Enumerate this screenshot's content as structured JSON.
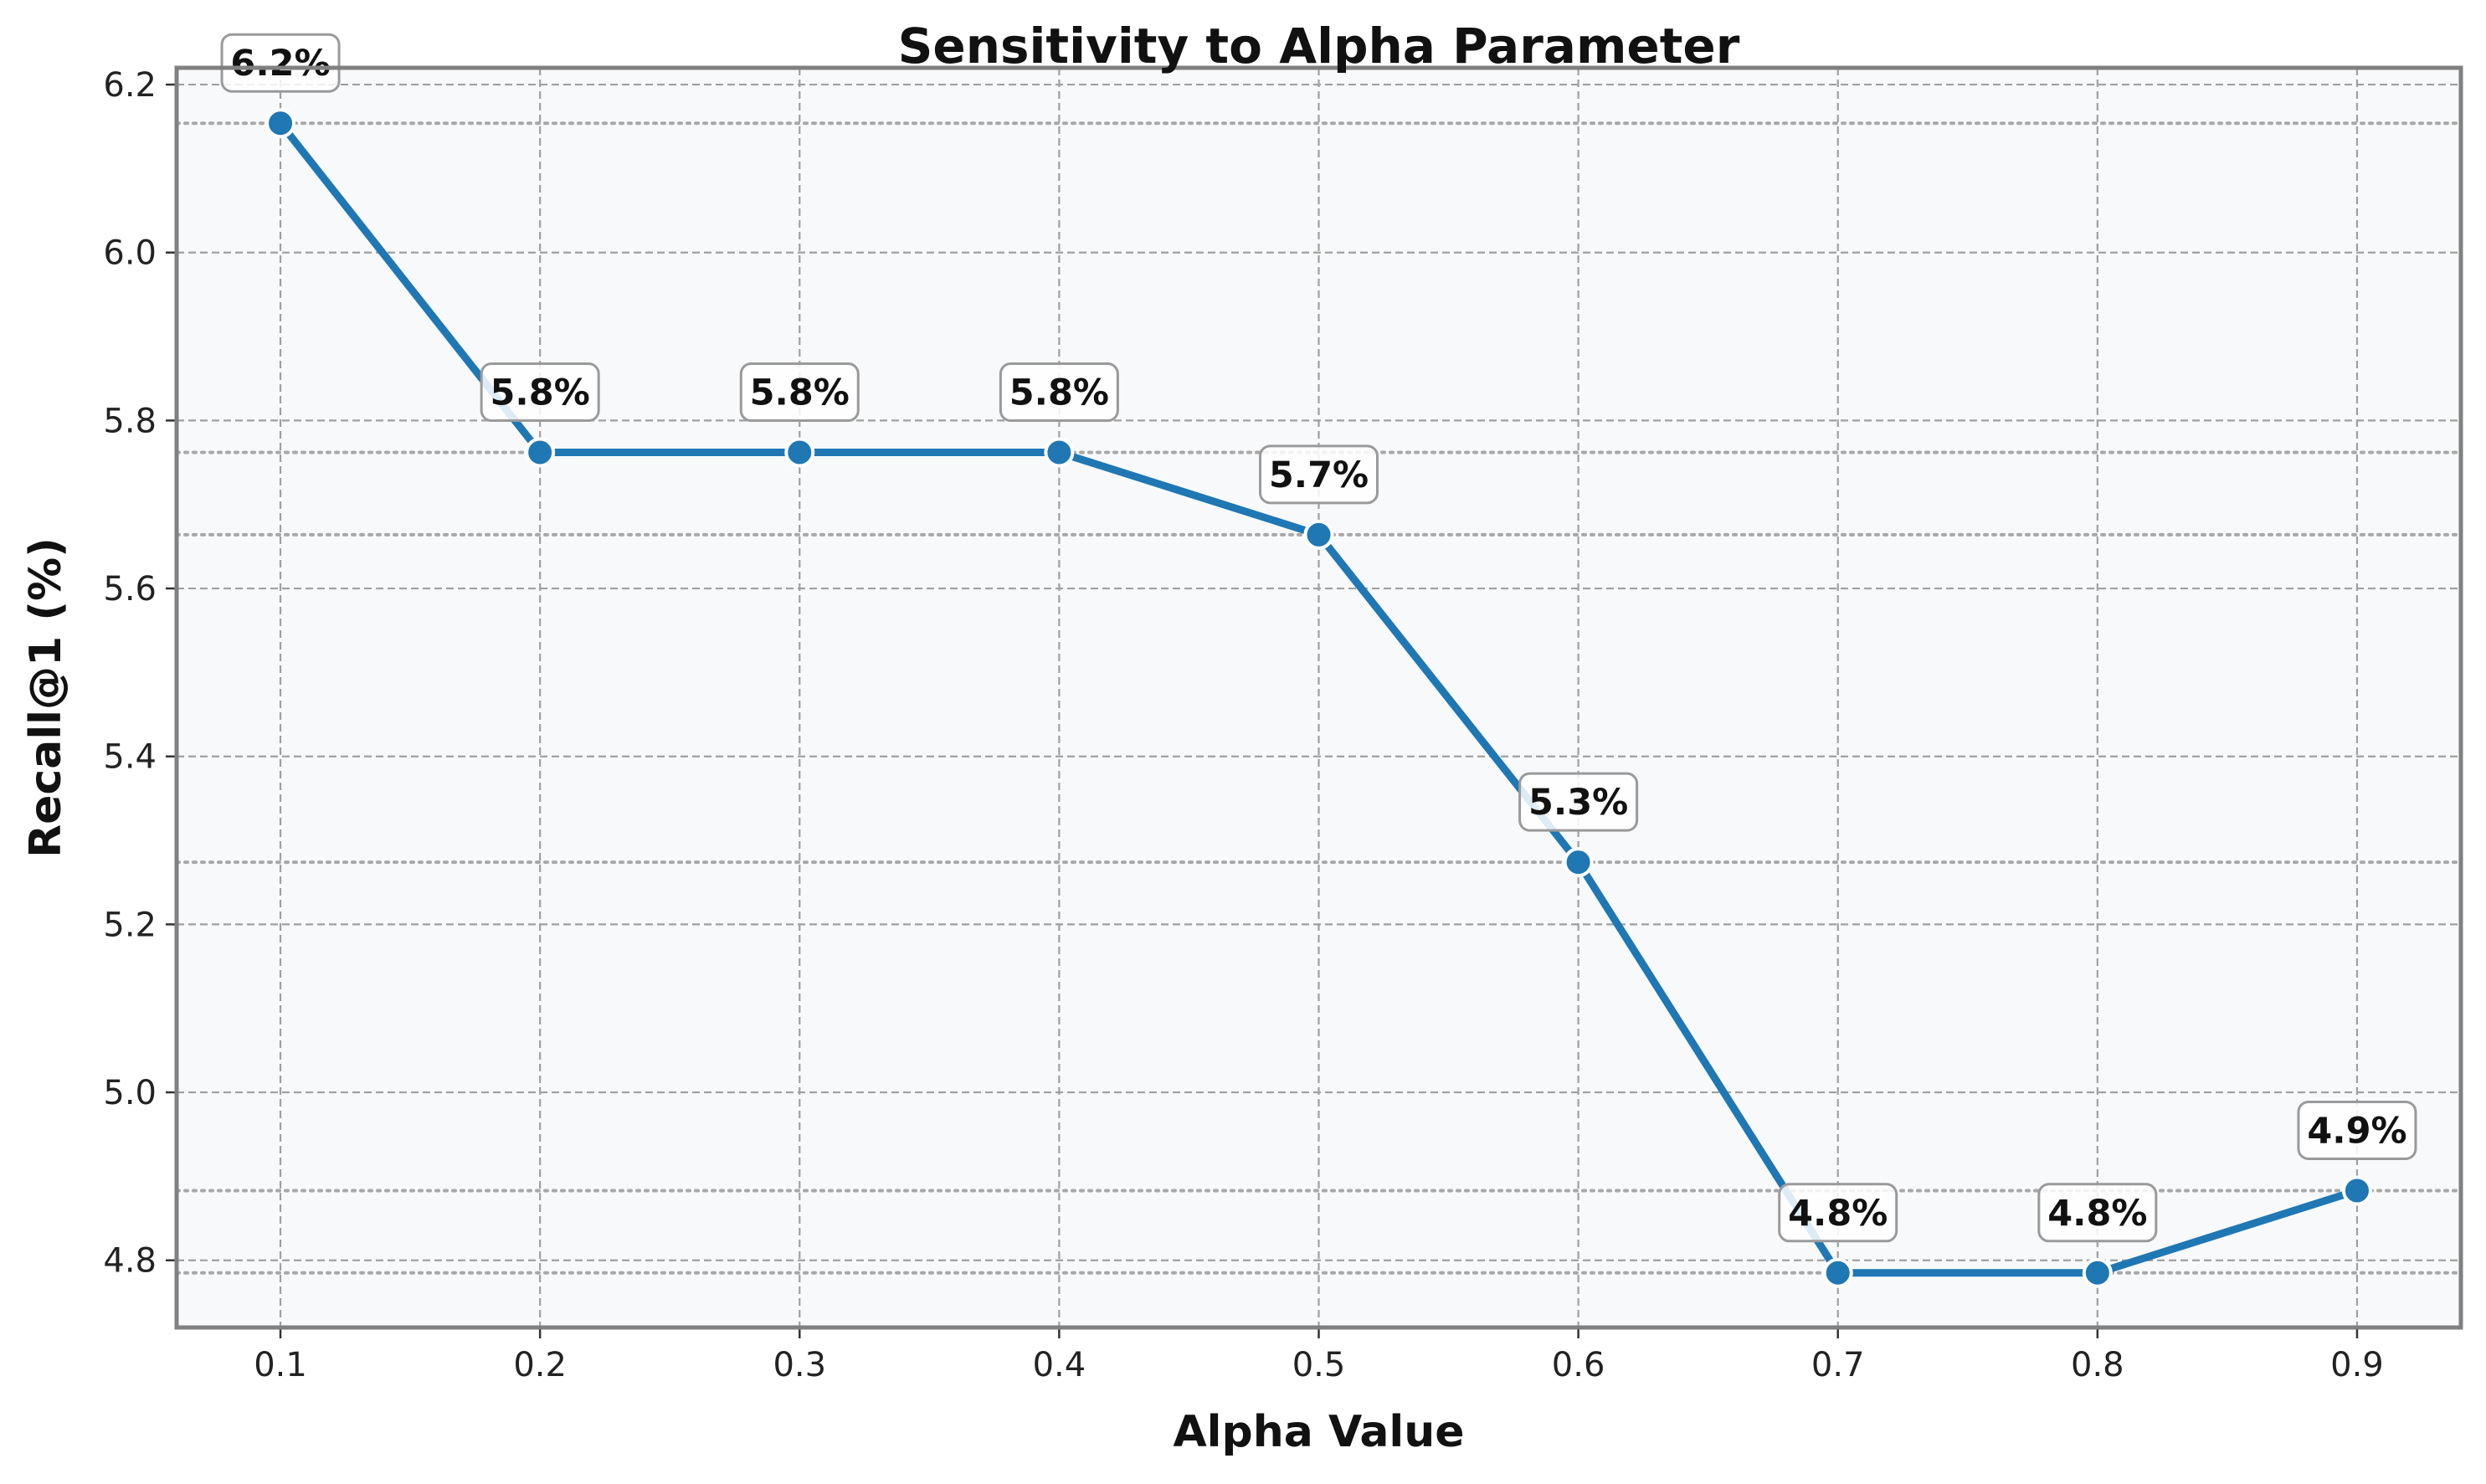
{
  "chart_data": {
    "type": "line",
    "title": "Sensitivity to Alpha Parameter",
    "xlabel": "Alpha Value",
    "ylabel": "Recall@1 (%)",
    "x": [
      0.1,
      0.2,
      0.3,
      0.4,
      0.5,
      0.6,
      0.7,
      0.8,
      0.9
    ],
    "x_tick_labels": [
      "0.1",
      "0.2",
      "0.3",
      "0.4",
      "0.5",
      "0.6",
      "0.7",
      "0.8",
      "0.9"
    ],
    "y_tick_values": [
      4.8,
      5.0,
      5.2,
      5.4,
      5.6,
      5.8,
      6.0,
      6.2
    ],
    "y_tick_labels": [
      "4.8",
      "5.0",
      "5.2",
      "5.4",
      "5.6",
      "5.8",
      "6.0",
      "6.2"
    ],
    "xlim": [
      0.06,
      0.94
    ],
    "ylim": [
      4.72,
      6.22
    ],
    "grid": true,
    "series": [
      {
        "values": [
          6.154,
          5.762,
          5.762,
          5.762,
          5.664,
          5.274,
          4.785,
          4.785,
          4.883
        ],
        "data_labels": [
          "6.2%",
          "5.8%",
          "5.8%",
          "5.8%",
          "5.7%",
          "5.3%",
          "4.8%",
          "4.8%",
          "4.9%"
        ]
      }
    ],
    "colors": {
      "line": "#1f77b4",
      "plot_background": "#f7f9fb",
      "frame": "#808080",
      "grid": "#a0a0a0",
      "reference_lines": "#a8a8a8"
    }
  }
}
